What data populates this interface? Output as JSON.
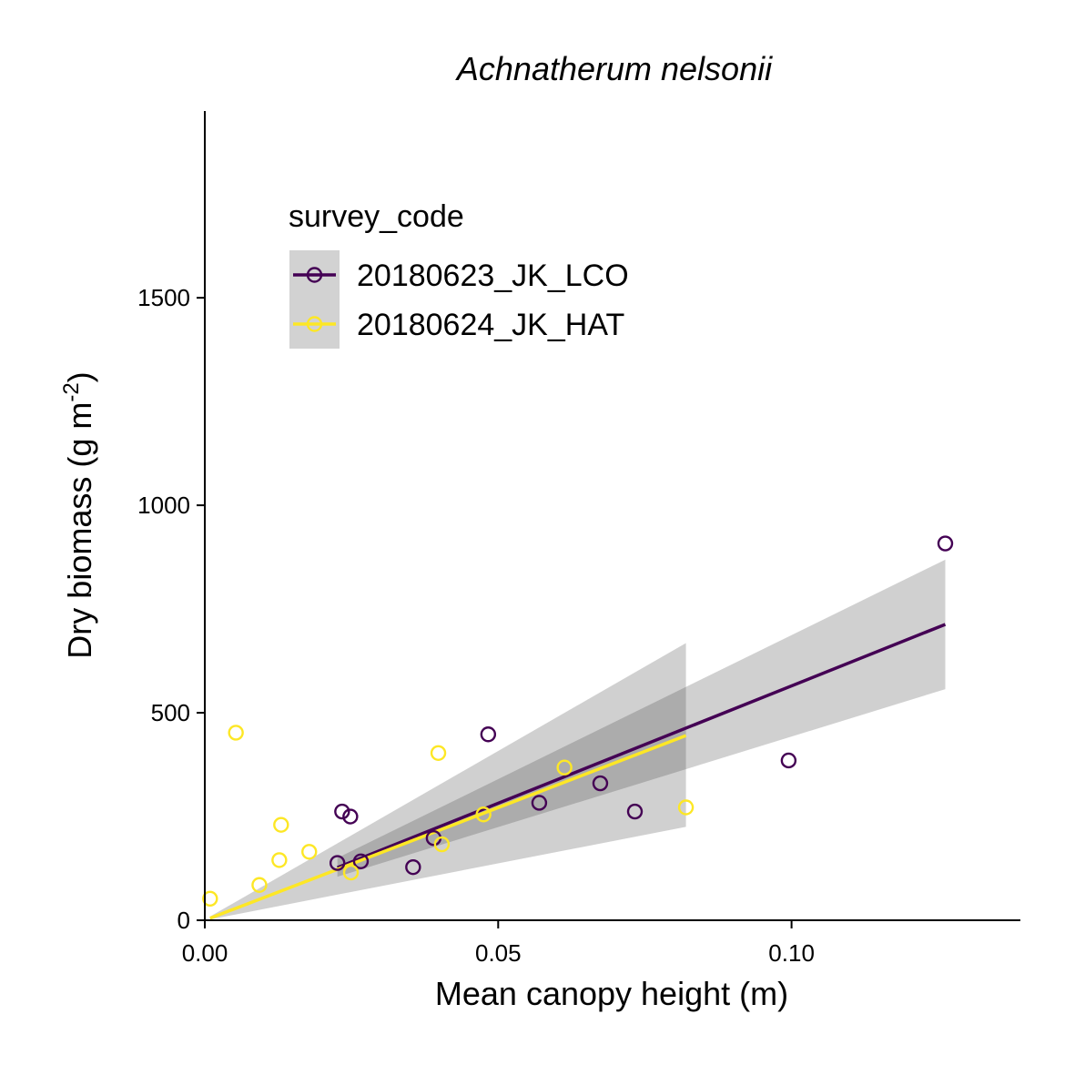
{
  "chart_data": {
    "type": "scatter",
    "title": "Achnatherum nelsonii",
    "xlabel": "Mean canopy height (m)",
    "ylabel": "Dry biomass (g m",
    "ylabel_sup": "-2",
    "ylabel_close": ")",
    "xlim": [
      0.0,
      0.139
    ],
    "ylim": [
      0,
      1950
    ],
    "x_ticks": [
      0.0,
      0.05,
      0.1
    ],
    "x_tick_labels": [
      "0.00",
      "0.05",
      "0.10"
    ],
    "y_ticks": [
      0,
      500,
      1000,
      1500
    ],
    "y_tick_labels": [
      "0",
      "500",
      "1000",
      "1500"
    ],
    "grid": false,
    "legend": {
      "title": "survey_code",
      "placement": "top-left"
    },
    "series": [
      {
        "name": "20180623_JK_LCO",
        "color": "#440154",
        "points": [
          {
            "x": 0.0226,
            "y": 138
          },
          {
            "x": 0.0234,
            "y": 262
          },
          {
            "x": 0.0248,
            "y": 250
          },
          {
            "x": 0.0266,
            "y": 142
          },
          {
            "x": 0.0355,
            "y": 128
          },
          {
            "x": 0.039,
            "y": 198
          },
          {
            "x": 0.0483,
            "y": 448
          },
          {
            "x": 0.057,
            "y": 283
          },
          {
            "x": 0.0674,
            "y": 330
          },
          {
            "x": 0.0733,
            "y": 262
          },
          {
            "x": 0.0995,
            "y": 385
          },
          {
            "x": 0.1262,
            "y": 908
          }
        ],
        "fit": {
          "x": [
            0.0226,
            0.1262
          ],
          "y": [
            127,
            713
          ]
        },
        "band": {
          "x": [
            0.0226,
            0.1262
          ],
          "lower": [
            105,
            557
          ],
          "upper": [
            150,
            869
          ]
        }
      },
      {
        "name": "20180624_JK_HAT",
        "color": "#FDE725",
        "points": [
          {
            "x": 0.0009,
            "y": 52
          },
          {
            "x": 0.0053,
            "y": 452
          },
          {
            "x": 0.0093,
            "y": 85
          },
          {
            "x": 0.0127,
            "y": 145
          },
          {
            "x": 0.013,
            "y": 230
          },
          {
            "x": 0.0178,
            "y": 165
          },
          {
            "x": 0.0249,
            "y": 115
          },
          {
            "x": 0.0398,
            "y": 403
          },
          {
            "x": 0.0404,
            "y": 183
          },
          {
            "x": 0.0475,
            "y": 255
          },
          {
            "x": 0.0613,
            "y": 368
          },
          {
            "x": 0.082,
            "y": 272
          }
        ],
        "fit": {
          "x": [
            0.0009,
            0.082
          ],
          "y": [
            5,
            445
          ]
        },
        "band": {
          "x": [
            0.0009,
            0.082
          ],
          "lower": [
            2,
            225
          ],
          "upper": [
            9,
            668
          ]
        }
      }
    ]
  }
}
